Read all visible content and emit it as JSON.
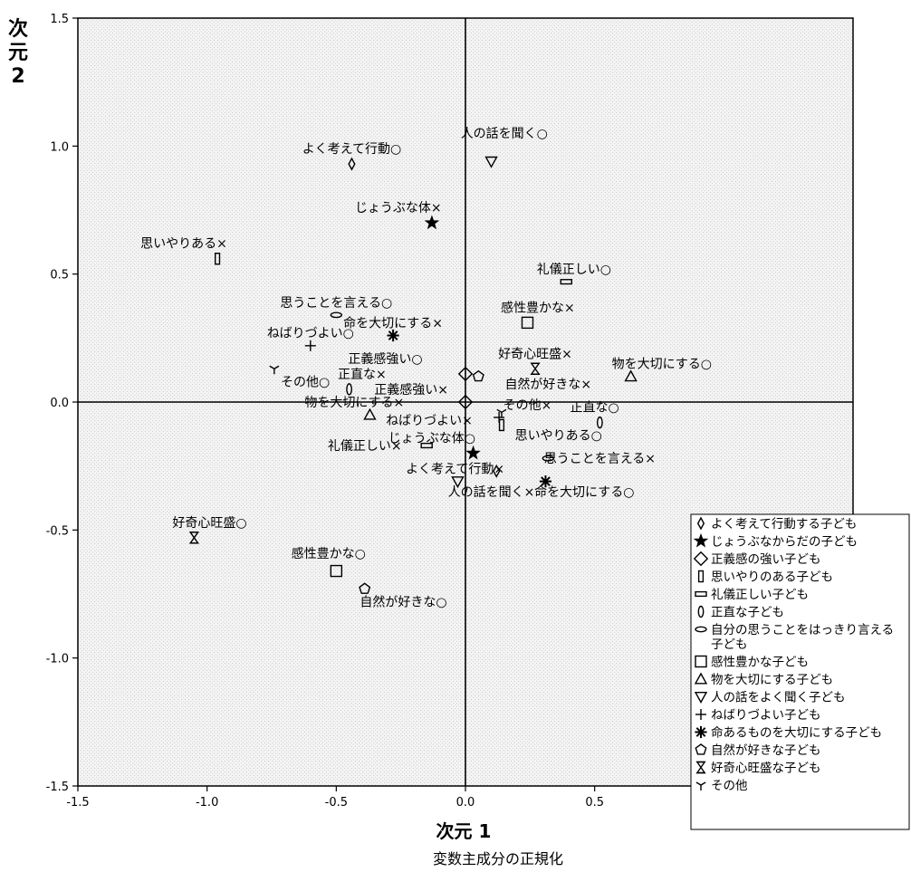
{
  "chart_data": {
    "type": "scatter",
    "xlabel": "次元 1",
    "ylabel": "次元 2",
    "subtitle": "変数主成分の正規化",
    "xlim": [
      -1.5,
      1.5
    ],
    "ylim": [
      -1.5,
      1.5
    ],
    "xticks": [
      -1.5,
      -1.0,
      -0.5,
      0.0,
      0.5,
      1.0,
      1.5
    ],
    "yticks": [
      -1.5,
      -1.0,
      -0.5,
      0.0,
      0.5,
      1.0,
      1.5
    ],
    "xtick_labels": [
      "-1.5",
      "-1.0",
      "-0.5",
      "0.0",
      "0.5",
      "1.0",
      "1.5"
    ],
    "ytick_labels": [
      "-1.5",
      "-1.0",
      "-0.5",
      "0.0",
      "0.5",
      "1.0",
      "1.5"
    ],
    "reference_lines": {
      "x": 0,
      "y": 0
    },
    "legend_position": "bottom-right",
    "series": [
      {
        "name": "よく考えて行動する子ども",
        "symbol": "diamond-small",
        "points": [
          [
            -0.44,
            0.93
          ],
          [
            0.12,
            -0.27
          ]
        ],
        "labels": [
          {
            "text": "よく考えて行動○",
            "x": -0.44,
            "y": 0.99
          },
          {
            "text": "よく考えて行動×",
            "x": -0.04,
            "y": -0.26
          }
        ]
      },
      {
        "name": "じょうぶなからだの子ども",
        "symbol": "star",
        "points": [
          [
            -0.13,
            0.7
          ],
          [
            0.03,
            -0.2
          ]
        ],
        "labels": [
          {
            "text": "じょうぶな体×",
            "x": -0.26,
            "y": 0.76
          },
          {
            "text": "じょうぶな体○",
            "x": -0.13,
            "y": -0.14
          }
        ]
      },
      {
        "name": "正義感の強い子ども",
        "symbol": "diamond-large",
        "points": [
          [
            0.0,
            0.11
          ],
          [
            0.0,
            0.0
          ]
        ],
        "labels": [
          {
            "text": "正義感強い○",
            "x": -0.31,
            "y": 0.17
          },
          {
            "text": "正義感強い×",
            "x": -0.21,
            "y": 0.05
          }
        ]
      },
      {
        "name": "思いやりのある子ども",
        "symbol": "tall-rect",
        "points": [
          [
            -0.96,
            0.56
          ],
          [
            0.14,
            -0.09
          ]
        ],
        "labels": [
          {
            "text": "思いやりある×",
            "x": -1.09,
            "y": 0.62
          },
          {
            "text": "思いやりある○",
            "x": 0.36,
            "y": -0.13
          }
        ]
      },
      {
        "name": "礼儀正しい子ども",
        "symbol": "flat-rect",
        "points": [
          [
            0.39,
            0.47
          ],
          [
            -0.15,
            -0.17
          ]
        ],
        "labels": [
          {
            "text": "礼儀正しい○",
            "x": 0.42,
            "y": 0.52
          },
          {
            "text": "礼儀正しい×",
            "x": -0.39,
            "y": -0.17
          }
        ]
      },
      {
        "name": "正直な子ども",
        "symbol": "tall-ellipse",
        "points": [
          [
            -0.45,
            0.05
          ],
          [
            0.52,
            -0.08
          ]
        ],
        "labels": [
          {
            "text": "正直な×",
            "x": -0.4,
            "y": 0.11
          },
          {
            "text": "正直な○",
            "x": 0.5,
            "y": -0.02
          }
        ]
      },
      {
        "name": "自分の思うことをはっきり言える子ども",
        "symbol": "flat-ellipse",
        "points": [
          [
            -0.5,
            0.34
          ],
          [
            0.32,
            -0.22
          ]
        ],
        "labels": [
          {
            "text": "思うことを言える○",
            "x": -0.5,
            "y": 0.39
          },
          {
            "text": "思うことを言える×",
            "x": 0.52,
            "y": -0.22
          }
        ]
      },
      {
        "name": "感性豊かな子ども",
        "symbol": "square",
        "points": [
          [
            0.24,
            0.31
          ],
          [
            -0.5,
            -0.66
          ]
        ],
        "labels": [
          {
            "text": "感性豊かな×",
            "x": 0.28,
            "y": 0.37
          },
          {
            "text": "感性豊かな○",
            "x": -0.53,
            "y": -0.59
          }
        ]
      },
      {
        "name": "物を大切にする子ども",
        "symbol": "triangle-up",
        "points": [
          [
            0.64,
            0.1
          ],
          [
            -0.37,
            -0.05
          ]
        ],
        "labels": [
          {
            "text": "物を大切にする○",
            "x": 0.76,
            "y": 0.15
          },
          {
            "text": "物を大切にする×",
            "x": -0.43,
            "y": 0.0
          }
        ]
      },
      {
        "name": "人の話をよく聞く子ども",
        "symbol": "triangle-down",
        "points": [
          [
            0.1,
            0.94
          ],
          [
            -0.03,
            -0.31
          ]
        ],
        "labels": [
          {
            "text": "人の話を聞く○",
            "x": 0.15,
            "y": 1.05
          },
          {
            "text": "人の話を聞く×",
            "x": 0.1,
            "y": -0.35
          }
        ]
      },
      {
        "name": "ねばりづよい子ども",
        "symbol": "plus",
        "points": [
          [
            -0.6,
            0.22
          ],
          [
            0.13,
            -0.06
          ]
        ],
        "labels": [
          {
            "text": "ねばりづよい○",
            "x": -0.6,
            "y": 0.27
          },
          {
            "text": "ねばりづよい×",
            "x": -0.14,
            "y": -0.07
          }
        ]
      },
      {
        "name": "命あるものを大切にする子ども",
        "symbol": "asterisk",
        "points": [
          [
            -0.28,
            0.26
          ],
          [
            0.31,
            -0.31
          ]
        ],
        "labels": [
          {
            "text": "命を大切にする×",
            "x": -0.28,
            "y": 0.31
          },
          {
            "text": "命を大切にする○",
            "x": 0.46,
            "y": -0.35
          }
        ]
      },
      {
        "name": "自然が好きな子ども",
        "symbol": "pentagon",
        "points": [
          [
            0.05,
            0.1
          ],
          [
            -0.39,
            -0.73
          ]
        ],
        "labels": [
          {
            "text": "自然が好きな×",
            "x": 0.32,
            "y": 0.07
          },
          {
            "text": "自然が好きな○",
            "x": -0.24,
            "y": -0.78
          }
        ]
      },
      {
        "name": "好奇心旺盛な子ども",
        "symbol": "hourglass",
        "points": [
          [
            0.27,
            0.13
          ],
          [
            -1.05,
            -0.53
          ]
        ],
        "labels": [
          {
            "text": "好奇心旺盛×",
            "x": 0.27,
            "y": 0.19
          },
          {
            "text": "好奇心旺盛○",
            "x": -0.99,
            "y": -0.47
          }
        ]
      },
      {
        "name": "その他",
        "symbol": "tripod",
        "points": [
          [
            -0.74,
            0.13
          ],
          [
            0.14,
            -0.04
          ]
        ],
        "labels": [
          {
            "text": "その他○",
            "x": -0.62,
            "y": 0.08
          },
          {
            "text": "その他×",
            "x": 0.24,
            "y": -0.01
          }
        ]
      }
    ]
  }
}
